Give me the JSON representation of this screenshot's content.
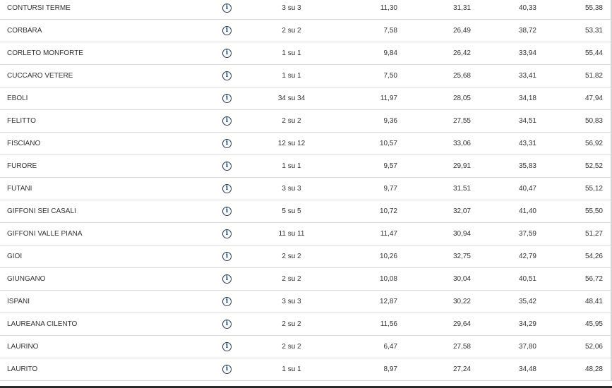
{
  "icons": {
    "info": "info-circle-icon",
    "info_glyph": "i"
  },
  "rows": [
    {
      "comune": "CONTURSI TERME",
      "sezioni": "3 su 3",
      "v1": "11,30",
      "v2": "31,31",
      "v3": "40,33",
      "v4": "55,38"
    },
    {
      "comune": "CORBARA",
      "sezioni": "2 su 2",
      "v1": "7,58",
      "v2": "26,49",
      "v3": "38,72",
      "v4": "53,31"
    },
    {
      "comune": "CORLETO MONFORTE",
      "sezioni": "1 su 1",
      "v1": "9,84",
      "v2": "26,42",
      "v3": "33,94",
      "v4": "55,44"
    },
    {
      "comune": "CUCCARO VETERE",
      "sezioni": "1 su 1",
      "v1": "7,50",
      "v2": "25,68",
      "v3": "33,41",
      "v4": "51,82"
    },
    {
      "comune": "EBOLI",
      "sezioni": "34 su 34",
      "v1": "11,97",
      "v2": "28,05",
      "v3": "34,18",
      "v4": "47,94"
    },
    {
      "comune": "FELITTO",
      "sezioni": "2 su 2",
      "v1": "9,36",
      "v2": "27,55",
      "v3": "34,51",
      "v4": "50,83"
    },
    {
      "comune": "FISCIANO",
      "sezioni": "12 su 12",
      "v1": "10,57",
      "v2": "33,06",
      "v3": "43,31",
      "v4": "56,92"
    },
    {
      "comune": "FURORE",
      "sezioni": "1 su 1",
      "v1": "9,57",
      "v2": "29,91",
      "v3": "35,83",
      "v4": "52,52"
    },
    {
      "comune": "FUTANI",
      "sezioni": "3 su 3",
      "v1": "9,77",
      "v2": "31,51",
      "v3": "40,47",
      "v4": "55,12"
    },
    {
      "comune": "GIFFONI SEI CASALI",
      "sezioni": "5 su 5",
      "v1": "10,72",
      "v2": "32,07",
      "v3": "41,40",
      "v4": "55,50"
    },
    {
      "comune": "GIFFONI VALLE PIANA",
      "sezioni": "11 su 11",
      "v1": "11,47",
      "v2": "30,94",
      "v3": "37,59",
      "v4": "51,27"
    },
    {
      "comune": "GIOI",
      "sezioni": "2 su 2",
      "v1": "10,26",
      "v2": "32,75",
      "v3": "42,79",
      "v4": "54,26"
    },
    {
      "comune": "GIUNGANO",
      "sezioni": "2 su 2",
      "v1": "10,08",
      "v2": "30,04",
      "v3": "40,51",
      "v4": "56,72"
    },
    {
      "comune": "ISPANI",
      "sezioni": "3 su 3",
      "v1": "12,87",
      "v2": "30,22",
      "v3": "35,42",
      "v4": "48,41"
    },
    {
      "comune": "LAUREANA CILENTO",
      "sezioni": "2 su 2",
      "v1": "11,56",
      "v2": "29,64",
      "v3": "34,29",
      "v4": "45,95"
    },
    {
      "comune": "LAURINO",
      "sezioni": "2 su 2",
      "v1": "6,47",
      "v2": "27,58",
      "v3": "37,80",
      "v4": "52,06"
    },
    {
      "comune": "LAURITO",
      "sezioni": "1 su 1",
      "v1": "8,97",
      "v2": "27,24",
      "v3": "34,48",
      "v4": "48,28"
    }
  ]
}
